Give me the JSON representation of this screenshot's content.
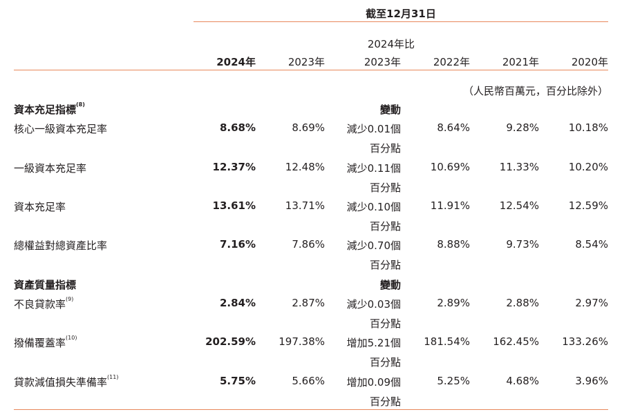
{
  "header": {
    "as_of": "截至12月31日",
    "change_col_line1": "2024年比",
    "columns": [
      "2024年",
      "2023年",
      "2023年",
      "2022年",
      "2021年",
      "2020年"
    ],
    "unit_note": "（人民幣百萬元，百分比除外）"
  },
  "sections": [
    {
      "title": "資本充足指標",
      "title_note": "(8)",
      "change_label": "變動",
      "rows": [
        {
          "label": "核心一級資本充足率",
          "note": "",
          "y2024": "8.68%",
          "y2023": "8.69%",
          "change": "減少0.01個",
          "change_unit": "百分點",
          "y2022": "8.64%",
          "y2021": "9.28%",
          "y2020": "10.18%"
        },
        {
          "label": "一級資本充足率",
          "note": "",
          "y2024": "12.37%",
          "y2023": "12.48%",
          "change": "減少0.11個",
          "change_unit": "百分點",
          "y2022": "10.69%",
          "y2021": "11.33%",
          "y2020": "10.20%"
        },
        {
          "label": "資本充足率",
          "note": "",
          "y2024": "13.61%",
          "y2023": "13.71%",
          "change": "減少0.10個",
          "change_unit": "百分點",
          "y2022": "11.91%",
          "y2021": "12.54%",
          "y2020": "12.59%"
        },
        {
          "label": "總權益對總資產比率",
          "note": "",
          "y2024": "7.16%",
          "y2023": "7.86%",
          "change": "減少0.70個",
          "change_unit": "百分點",
          "y2022": "8.88%",
          "y2021": "9.73%",
          "y2020": "8.54%"
        }
      ]
    },
    {
      "title": "資產質量指標",
      "title_note": "",
      "change_label": "變動",
      "rows": [
        {
          "label": "不良貸款率",
          "note": "(9)",
          "y2024": "2.84%",
          "y2023": "2.87%",
          "change": "減少0.03個",
          "change_unit": "百分點",
          "y2022": "2.89%",
          "y2021": "2.88%",
          "y2020": "2.97%"
        },
        {
          "label": "撥備覆蓋率",
          "note": "(10)",
          "y2024": "202.59%",
          "y2023": "197.38%",
          "change": "增加5.21個",
          "change_unit": "百分點",
          "y2022": "181.54%",
          "y2021": "162.45%",
          "y2020": "133.26%"
        },
        {
          "label": "貸款減值損失準備率",
          "note": "(11)",
          "y2024": "5.75%",
          "y2023": "5.66%",
          "change": "增加0.09個",
          "change_unit": "百分點",
          "y2022": "5.25%",
          "y2021": "4.68%",
          "y2020": "3.96%"
        }
      ]
    }
  ]
}
